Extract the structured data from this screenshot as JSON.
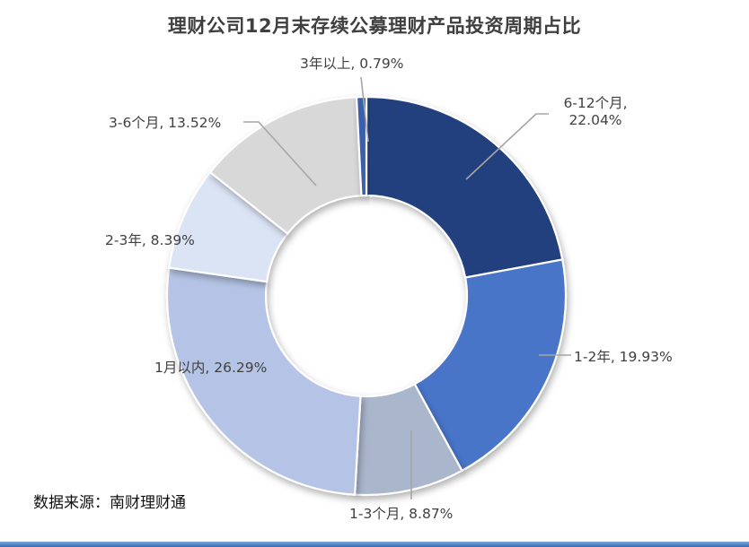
{
  "title": "理财公司12月末存续公募理财产品投资周期占比",
  "source": "数据来源：南财理财通",
  "chart_data": {
    "type": "pie",
    "subtype": "donut",
    "title": "理财公司12月末存续公募理财产品投资周期占比",
    "unit": "%",
    "start_angle_deg": 0,
    "direction": "clockwise",
    "donut_hole_ratio": 0.5,
    "legend": "none",
    "data_label_format": "category, percent",
    "categories": [
      "6-12个月",
      "1-2年",
      "1-3个月",
      "1月以内",
      "2-3年",
      "3-6个月",
      "3年以上"
    ],
    "values": [
      22.04,
      19.93,
      8.87,
      26.29,
      8.39,
      13.52,
      0.79
    ],
    "colors": [
      "#24417e",
      "#4a74c9",
      "#a9b6cc",
      "#b5c4e6",
      "#dbe4f5",
      "#d8d8d8",
      "#3b5fa9"
    ],
    "labels": [
      "6-12个月, 22.04%",
      "1-2年, 19.93%",
      "1-3个月, 8.87%",
      "1月以内, 26.29%",
      "2-3年, 8.39%",
      "3-6个月, 13.52%",
      "3年以上, 0.79%"
    ],
    "leader_line_color": "#a6a6a6",
    "label_text_color": "#404040",
    "source_note": "数据来源：南财理财通"
  }
}
